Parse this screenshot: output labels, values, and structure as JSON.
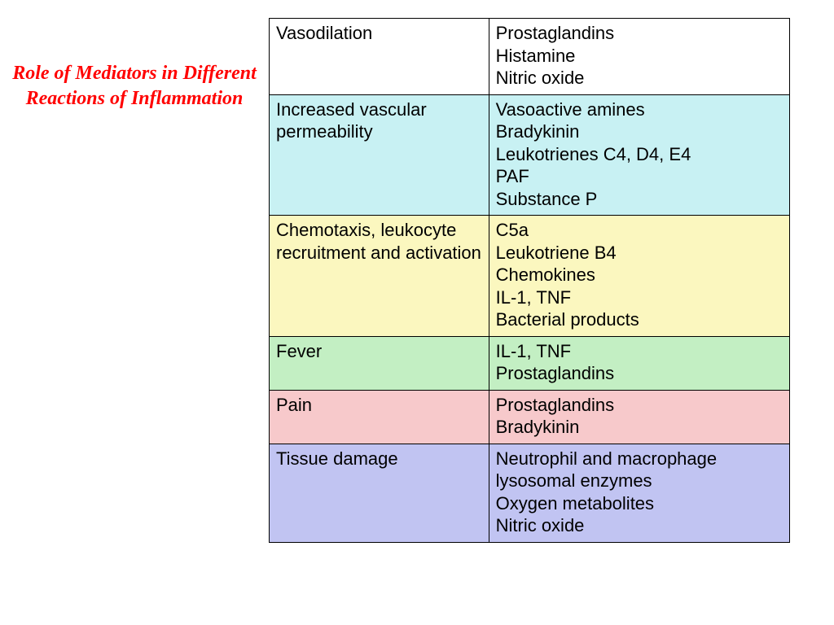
{
  "title": "Role of Mediators in Different Reactions of Inflammation",
  "title_color": "#ff0000",
  "title_fontsize": 24,
  "cell_fontsize": 22,
  "border_color": "#000000",
  "columns": {
    "reaction_width": 270,
    "mediators_width": 370
  },
  "rows": [
    {
      "reaction": "Vasodilation",
      "mediators": "Prostaglandins\nHistamine\nNitric oxide",
      "bg": "#ffffff"
    },
    {
      "reaction": "Increased vascular permeability",
      "mediators": "Vasoactive amines\nBradykinin\nLeukotrienes C4, D4, E4\nPAF\nSubstance P",
      "bg": "#c8f1f3"
    },
    {
      "reaction": "Chemotaxis, leukocyte recruitment and activation",
      "mediators": "C5a\nLeukotriene B4\nChemokines\nIL-1, TNF\nBacterial products",
      "bg": "#fbf7bf"
    },
    {
      "reaction": "Fever",
      "mediators": "IL-1, TNF\nProstaglandins",
      "bg": "#c3efc3"
    },
    {
      "reaction": "Pain",
      "mediators": "Prostaglandins\nBradykinin",
      "bg": "#f7c9cb"
    },
    {
      "reaction": "Tissue damage",
      "mediators": "Neutrophil and macrophage lysosomal  enzymes\nOxygen metabolites\nNitric oxide",
      "bg": "#c1c4f2"
    }
  ]
}
